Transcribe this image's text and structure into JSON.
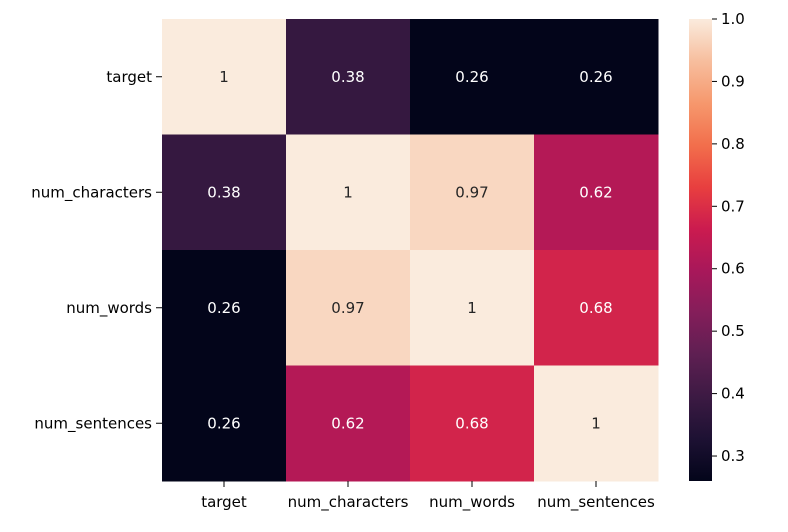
{
  "chart_data": {
    "type": "heatmap",
    "title": "",
    "xlabel": "",
    "ylabel": "",
    "rows": [
      "target",
      "num_characters",
      "num_words",
      "num_sentences"
    ],
    "columns": [
      "target",
      "num_characters",
      "num_words",
      "num_sentences"
    ],
    "values": [
      [
        1,
        0.38,
        0.26,
        0.26
      ],
      [
        0.38,
        1,
        0.97,
        0.62
      ],
      [
        0.26,
        0.97,
        1,
        0.68
      ],
      [
        0.26,
        0.62,
        0.68,
        1
      ]
    ],
    "annotations": [
      [
        "1",
        "0.38",
        "0.26",
        "0.26"
      ],
      [
        "0.38",
        "1",
        "0.97",
        "0.62"
      ],
      [
        "0.26",
        "0.97",
        "1",
        "0.68"
      ],
      [
        "0.26",
        "0.62",
        "0.68",
        "1"
      ]
    ],
    "colormap": "rocket",
    "colorbar": {
      "range": [
        0.26,
        1.0
      ],
      "ticks": [
        0.3,
        0.4,
        0.5,
        0.6,
        0.7,
        0.8,
        0.9,
        1.0
      ],
      "tick_labels": [
        "0.3",
        "0.4",
        "0.5",
        "0.6",
        "0.7",
        "0.8",
        "0.9",
        "1.0"
      ]
    },
    "colors": {
      "rocket_stops": [
        "#03051a",
        "#1d1133",
        "#3c1a43",
        "#5e1f52",
        "#841e5a",
        "#a8185a",
        "#cb1b4f",
        "#e83f3f",
        "#f26f4c",
        "#f6986d",
        "#f7be9e",
        "#faebdd"
      ],
      "text_on_dark": "#ffffff",
      "text_on_light": "#262626"
    }
  }
}
